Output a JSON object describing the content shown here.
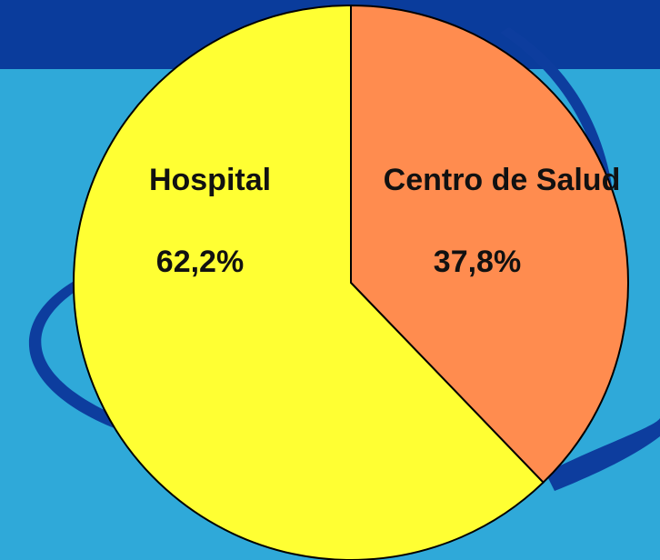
{
  "chart_data": {
    "type": "pie",
    "categories": [
      "Hospital",
      "Centro de Salud"
    ],
    "values": [
      62.2,
      37.8
    ],
    "value_labels": [
      "62,2%",
      "37,8%"
    ],
    "colors": [
      "#ffff33",
      "#ff8c4f"
    ]
  }
}
